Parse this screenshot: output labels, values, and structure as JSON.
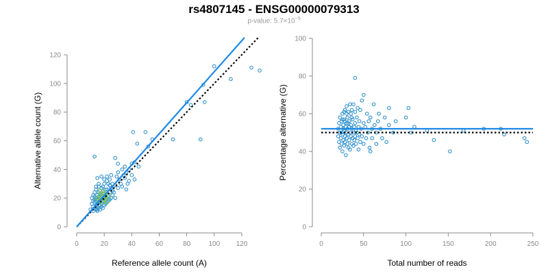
{
  "header": {
    "title": "rs4807145 - ENSG00000079313",
    "pvalue_prefix": "p-value: ",
    "pvalue_mantissa": "5.7×10",
    "pvalue_exponent": "−5"
  },
  "colors": {
    "points": "#1f88c9",
    "fit_line": "#1e88e5",
    "ref_line": "#000000",
    "highlight": "#6fbf4a"
  },
  "chart_data": [
    {
      "type": "scatter",
      "xlabel": "Reference allele count (A)",
      "ylabel": "Alternative allele count (G)",
      "xlim": [
        0,
        125
      ],
      "ylim": [
        0,
        120
      ],
      "xticks": [
        0,
        20,
        40,
        60,
        80,
        100,
        120
      ],
      "yticks": [
        0,
        20,
        40,
        60,
        80,
        100,
        120
      ],
      "fit_line": [
        [
          0,
          0
        ],
        [
          122,
          132
        ]
      ],
      "ref_line": [
        [
          0,
          0
        ],
        [
          132,
          132
        ]
      ],
      "points": [
        [
          10,
          12
        ],
        [
          11,
          16
        ],
        [
          11,
          20
        ],
        [
          12,
          14
        ],
        [
          12,
          18
        ],
        [
          12,
          22
        ],
        [
          12,
          11
        ],
        [
          13,
          13
        ],
        [
          13,
          17
        ],
        [
          13,
          19
        ],
        [
          13,
          21
        ],
        [
          13,
          24
        ],
        [
          14,
          12
        ],
        [
          14,
          15
        ],
        [
          14,
          18
        ],
        [
          14,
          20
        ],
        [
          14,
          26
        ],
        [
          15,
          11
        ],
        [
          15,
          14
        ],
        [
          15,
          16
        ],
        [
          15,
          19
        ],
        [
          15,
          22
        ],
        [
          15,
          12
        ],
        [
          16,
          13
        ],
        [
          16,
          17
        ],
        [
          16,
          21
        ],
        [
          16,
          24
        ],
        [
          16,
          28
        ],
        [
          17,
          12
        ],
        [
          17,
          15
        ],
        [
          17,
          18
        ],
        [
          17,
          20
        ],
        [
          17,
          23
        ],
        [
          18,
          14
        ],
        [
          18,
          16
        ],
        [
          18,
          19
        ],
        [
          18,
          22
        ],
        [
          18,
          27
        ],
        [
          19,
          13
        ],
        [
          19,
          17
        ],
        [
          19,
          21
        ],
        [
          19,
          25
        ],
        [
          20,
          15
        ],
        [
          20,
          18
        ],
        [
          20,
          20
        ],
        [
          20,
          23
        ],
        [
          20,
          30
        ],
        [
          21,
          16
        ],
        [
          21,
          19
        ],
        [
          21,
          22
        ],
        [
          22,
          17
        ],
        [
          22,
          20
        ],
        [
          22,
          26
        ],
        [
          22,
          32
        ],
        [
          23,
          18
        ],
        [
          23,
          21
        ],
        [
          24,
          19
        ],
        [
          24,
          24
        ],
        [
          24,
          33
        ],
        [
          25,
          20
        ],
        [
          25,
          27
        ],
        [
          26,
          22
        ],
        [
          26,
          30
        ],
        [
          27,
          24
        ],
        [
          28,
          20
        ],
        [
          28,
          29
        ],
        [
          29,
          35
        ],
        [
          30,
          27
        ],
        [
          30,
          38
        ],
        [
          32,
          30
        ],
        [
          33,
          28
        ],
        [
          34,
          36
        ],
        [
          35,
          34
        ],
        [
          35,
          42
        ],
        [
          36,
          26
        ],
        [
          37,
          30
        ],
        [
          38,
          40
        ],
        [
          40,
          36
        ],
        [
          40,
          44
        ],
        [
          42,
          33
        ],
        [
          42,
          45
        ],
        [
          44,
          58
        ],
        [
          45,
          42
        ],
        [
          13,
          49
        ],
        [
          15,
          34
        ],
        [
          18,
          35
        ],
        [
          20,
          33
        ],
        [
          22,
          35
        ],
        [
          25,
          36
        ],
        [
          28,
          48
        ],
        [
          30,
          44
        ],
        [
          36,
          38
        ],
        [
          41,
          66
        ],
        [
          50,
          66
        ],
        [
          52,
          56
        ],
        [
          55,
          61
        ],
        [
          70,
          61
        ],
        [
          80,
          87
        ],
        [
          83,
          85
        ],
        [
          90,
          61
        ],
        [
          92,
          99
        ],
        [
          93,
          87
        ],
        [
          100,
          112
        ],
        [
          112,
          103
        ],
        [
          127,
          111
        ],
        [
          133,
          109
        ],
        [
          14,
          28
        ],
        [
          16,
          30
        ],
        [
          19,
          28
        ],
        [
          21,
          26
        ],
        [
          23,
          30
        ],
        [
          26,
          25
        ],
        [
          31,
          33
        ],
        [
          33,
          40
        ],
        [
          38,
          32
        ],
        [
          24,
          29
        ]
      ],
      "highlight_points": [
        [
          15,
          20
        ],
        [
          16,
          18
        ],
        [
          17,
          22
        ],
        [
          18,
          20
        ],
        [
          19,
          17
        ],
        [
          20,
          19
        ],
        [
          21,
          21
        ],
        [
          22,
          18
        ],
        [
          17,
          25
        ],
        [
          20,
          24
        ],
        [
          23,
          22
        ],
        [
          19,
          23
        ]
      ]
    },
    {
      "type": "scatter",
      "xlabel": "Total number of reads",
      "ylabel": "Percentage alternative (G)",
      "xlim": [
        0,
        250
      ],
      "ylim": [
        0,
        100
      ],
      "xticks": [
        0,
        50,
        100,
        150,
        200,
        250
      ],
      "yticks": [
        0,
        20,
        40,
        60,
        80,
        100
      ],
      "fit_line": [
        [
          0,
          52
        ],
        [
          250,
          52
        ]
      ],
      "ref_line": [
        [
          0,
          50
        ],
        [
          250,
          50
        ]
      ],
      "points": [
        [
          20,
          52
        ],
        [
          20,
          48
        ],
        [
          21,
          45
        ],
        [
          21,
          55
        ],
        [
          22,
          50
        ],
        [
          22,
          42
        ],
        [
          22,
          58
        ],
        [
          23,
          47
        ],
        [
          23,
          53
        ],
        [
          24,
          44
        ],
        [
          24,
          56
        ],
        [
          24,
          50
        ],
        [
          25,
          49
        ],
        [
          25,
          40
        ],
        [
          25,
          60
        ],
        [
          26,
          52
        ],
        [
          26,
          46
        ],
        [
          26,
          54
        ],
        [
          27,
          43
        ],
        [
          27,
          57
        ],
        [
          27,
          51
        ],
        [
          28,
          48
        ],
        [
          28,
          62
        ],
        [
          28,
          45
        ],
        [
          29,
          53
        ],
        [
          29,
          50
        ],
        [
          29,
          38
        ],
        [
          30,
          55
        ],
        [
          30,
          47
        ],
        [
          30,
          64
        ],
        [
          31,
          52
        ],
        [
          31,
          44
        ],
        [
          31,
          58
        ],
        [
          32,
          49
        ],
        [
          32,
          61
        ],
        [
          32,
          42
        ],
        [
          33,
          53
        ],
        [
          33,
          46
        ],
        [
          33,
          56
        ],
        [
          34,
          50
        ],
        [
          34,
          65
        ],
        [
          34,
          41
        ],
        [
          35,
          54
        ],
        [
          35,
          48
        ],
        [
          35,
          60
        ],
        [
          36,
          52
        ],
        [
          36,
          44
        ],
        [
          36,
          62
        ],
        [
          37,
          47
        ],
        [
          37,
          57
        ],
        [
          38,
          50
        ],
        [
          38,
          65
        ],
        [
          38,
          43
        ],
        [
          39,
          53
        ],
        [
          39,
          46
        ],
        [
          40,
          55
        ],
        [
          40,
          61
        ],
        [
          40,
          48
        ],
        [
          41,
          51
        ],
        [
          41,
          44
        ],
        [
          42,
          58
        ],
        [
          42,
          50
        ],
        [
          43,
          47
        ],
        [
          43,
          63
        ],
        [
          44,
          53
        ],
        [
          44,
          41
        ],
        [
          45,
          56
        ],
        [
          45,
          49
        ],
        [
          46,
          62
        ],
        [
          46,
          45
        ],
        [
          47,
          52
        ],
        [
          48,
          67
        ],
        [
          48,
          48
        ],
        [
          50,
          55
        ],
        [
          50,
          70
        ],
        [
          50,
          44
        ],
        [
          52,
          53
        ],
        [
          53,
          47
        ],
        [
          54,
          60
        ],
        [
          55,
          50
        ],
        [
          56,
          56
        ],
        [
          57,
          42
        ],
        [
          58,
          58
        ],
        [
          58,
          40
        ],
        [
          60,
          52
        ],
        [
          60,
          47
        ],
        [
          62,
          65
        ],
        [
          63,
          54
        ],
        [
          65,
          50
        ],
        [
          65,
          44
        ],
        [
          67,
          56
        ],
        [
          68,
          60
        ],
        [
          70,
          52
        ],
        [
          72,
          47
        ],
        [
          75,
          58
        ],
        [
          77,
          45
        ],
        [
          80,
          54
        ],
        [
          80,
          63
        ],
        [
          85,
          50
        ],
        [
          88,
          56
        ],
        [
          40,
          79
        ],
        [
          36,
          58
        ],
        [
          30,
          60
        ],
        [
          28,
          56
        ],
        [
          32,
          55
        ],
        [
          100,
          58
        ],
        [
          103,
          63
        ],
        [
          106,
          50
        ],
        [
          110,
          53
        ],
        [
          125,
          51
        ],
        [
          133,
          46
        ],
        [
          152,
          40
        ],
        [
          168,
          51
        ],
        [
          192,
          52
        ],
        [
          212,
          52
        ],
        [
          216,
          49
        ],
        [
          240,
          47
        ],
        [
          243,
          45
        ],
        [
          25,
          57
        ],
        [
          27,
          61
        ]
      ]
    }
  ]
}
